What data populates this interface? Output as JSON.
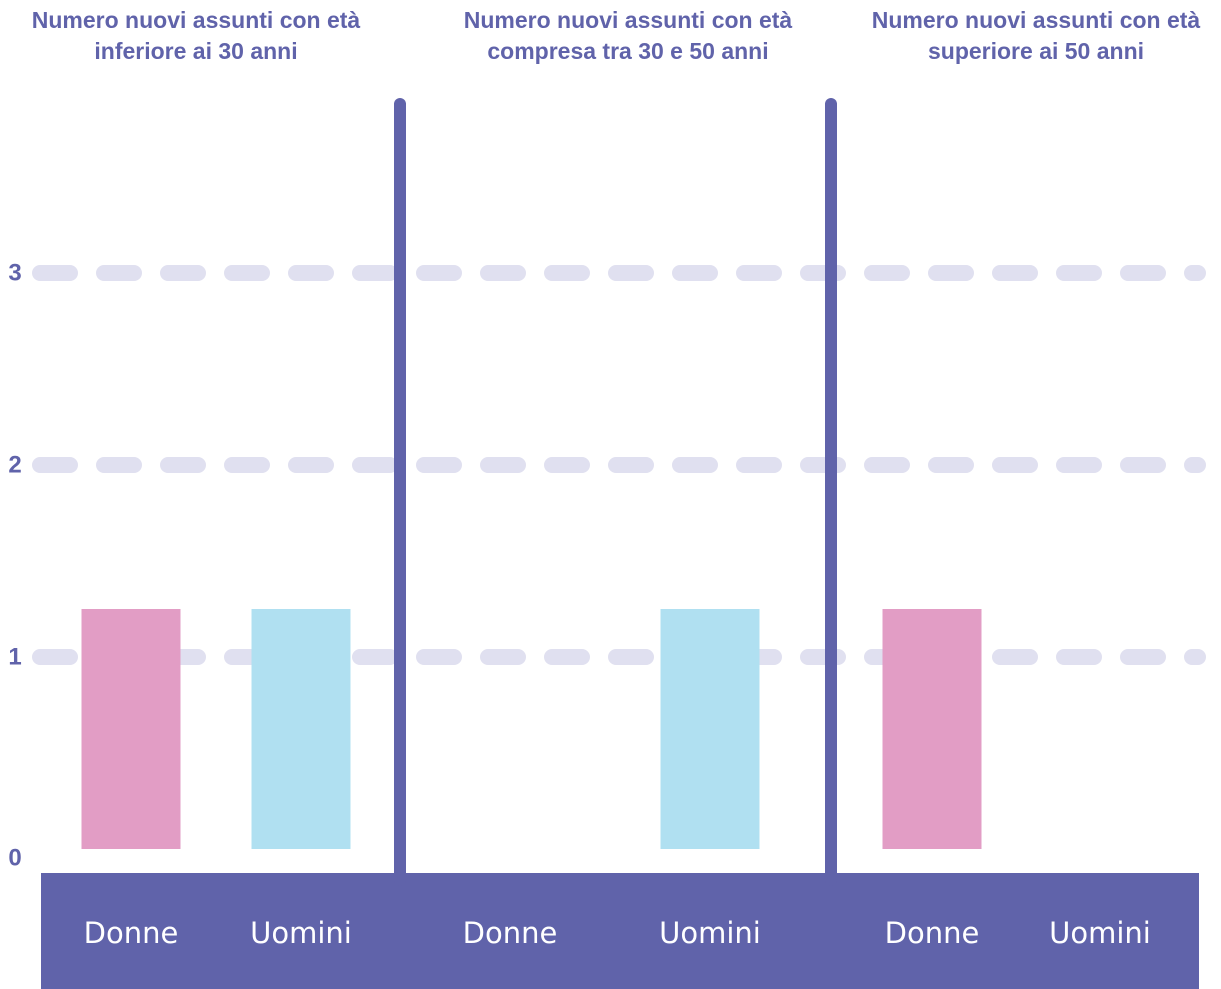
{
  "chart_data": {
    "type": "bar",
    "y_ticks": [
      "0",
      "1",
      "2",
      "3"
    ],
    "ylim": [
      0,
      3.75
    ],
    "grid": true,
    "colors": {
      "Donne": "#e29dc5",
      "Uomini": "#b0e0f1",
      "axis": "#6063aa",
      "grid": "#e0e0f0"
    },
    "groups": [
      {
        "title_lines": [
          "Numero nuovi assunti con età",
          "inferiore ai 30 anni"
        ],
        "bars": [
          {
            "label": "Donne",
            "value": 1
          },
          {
            "label": "Uomini",
            "value": 1
          }
        ]
      },
      {
        "title_lines": [
          "Numero nuovi assunti con età",
          "compresa tra 30 e 50 anni"
        ],
        "bars": [
          {
            "label": "Donne",
            "value": 0
          },
          {
            "label": "Uomini",
            "value": 1
          }
        ]
      },
      {
        "title_lines": [
          "Numero nuovi assunti con età",
          "superiore ai 50 anni"
        ],
        "bars": [
          {
            "label": "Donne",
            "value": 1
          },
          {
            "label": "Uomini",
            "value": 0
          }
        ]
      }
    ]
  }
}
